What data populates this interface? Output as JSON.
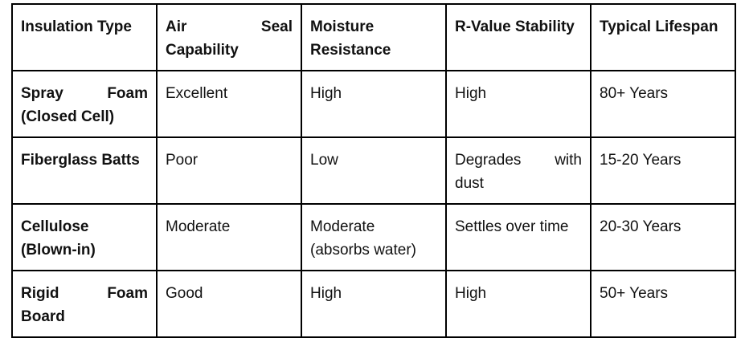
{
  "table": {
    "headers": [
      "Insulation Type",
      "Air Seal Capability",
      "Moisture Resistance",
      "R-Value Stability",
      "Typical Lifespan"
    ],
    "rows": [
      [
        "Spray Foam (Closed Cell)",
        "Excellent",
        "High",
        "High",
        "80+ Years"
      ],
      [
        "Fiberglass Batts",
        "Poor",
        "Low",
        "Degrades with dust",
        "15-20 Years"
      ],
      [
        "Cellulose (Blown-in)",
        "Moderate",
        "Moderate (absorbs water)",
        "Settles over time",
        "20-30 Years"
      ],
      [
        "Rigid Foam Board",
        "Good",
        "High",
        "High",
        "50+ Years"
      ]
    ]
  },
  "colors": {
    "border": "#000000",
    "text": "#111111",
    "background": "#ffffff"
  }
}
